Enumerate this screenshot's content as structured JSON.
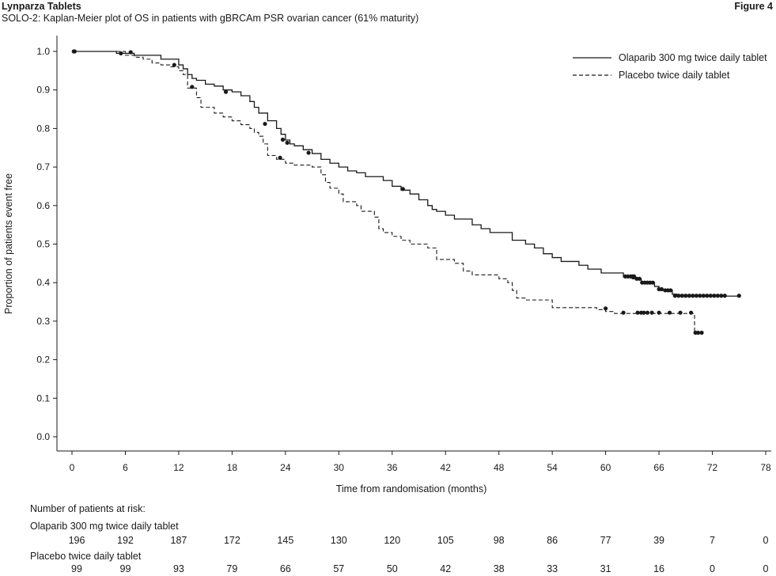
{
  "header": {
    "left_title": "Lynparza Tablets",
    "subtitle": "SOLO-2: Kaplan-Meier plot of OS in patients with gBRCAm PSR ovarian cancer (61% maturity)",
    "figure_label": "Figure 4"
  },
  "chart_data": {
    "type": "line",
    "xlabel": "Time from randomisation (months)",
    "ylabel": "Proportion of patients event free",
    "xlim": [
      0,
      78
    ],
    "ylim": [
      0,
      1.0
    ],
    "x_ticks": [
      0,
      6,
      12,
      18,
      24,
      30,
      36,
      42,
      48,
      54,
      60,
      66,
      72,
      78
    ],
    "y_ticks": [
      "0.0",
      "0.1",
      "0.2",
      "0.3",
      "0.4",
      "0.5",
      "0.6",
      "0.7",
      "0.8",
      "0.9",
      "1.0"
    ],
    "legend_position": "top-right",
    "grid": false,
    "series": [
      {
        "name": "Olaparib 300 mg twice daily tablet",
        "style": "solid",
        "color": "#1a1a1a",
        "steps": [
          [
            0,
            1.0
          ],
          [
            5,
            0.995
          ],
          [
            7,
            0.99
          ],
          [
            10,
            0.98
          ],
          [
            11.5,
            0.98
          ],
          [
            12,
            0.965
          ],
          [
            12.5,
            0.955
          ],
          [
            13,
            0.94
          ],
          [
            13.5,
            0.93
          ],
          [
            14,
            0.925
          ],
          [
            15,
            0.915
          ],
          [
            16,
            0.91
          ],
          [
            17,
            0.9
          ],
          [
            18,
            0.895
          ],
          [
            19,
            0.885
          ],
          [
            20,
            0.87
          ],
          [
            20.5,
            0.855
          ],
          [
            21,
            0.84
          ],
          [
            22,
            0.82
          ],
          [
            23,
            0.8
          ],
          [
            23.5,
            0.785
          ],
          [
            24,
            0.77
          ],
          [
            24.5,
            0.76
          ],
          [
            25,
            0.755
          ],
          [
            26,
            0.745
          ],
          [
            27,
            0.735
          ],
          [
            28,
            0.72
          ],
          [
            29,
            0.71
          ],
          [
            30,
            0.7
          ],
          [
            31,
            0.69
          ],
          [
            32,
            0.685
          ],
          [
            33,
            0.675
          ],
          [
            35,
            0.665
          ],
          [
            36,
            0.65
          ],
          [
            37,
            0.64
          ],
          [
            38,
            0.63
          ],
          [
            39,
            0.615
          ],
          [
            40,
            0.6
          ],
          [
            40.5,
            0.59
          ],
          [
            41,
            0.585
          ],
          [
            42,
            0.575
          ],
          [
            43,
            0.565
          ],
          [
            45,
            0.55
          ],
          [
            46,
            0.54
          ],
          [
            47,
            0.53
          ],
          [
            49,
            0.53
          ],
          [
            49.5,
            0.51
          ],
          [
            51,
            0.5
          ],
          [
            52,
            0.49
          ],
          [
            53,
            0.475
          ],
          [
            54,
            0.465
          ],
          [
            55,
            0.455
          ],
          [
            57,
            0.445
          ],
          [
            58,
            0.435
          ],
          [
            59.5,
            0.425
          ],
          [
            62,
            0.415
          ],
          [
            63,
            0.41
          ],
          [
            64,
            0.4
          ],
          [
            65.5,
            0.39
          ],
          [
            66,
            0.38
          ],
          [
            67.5,
            0.37
          ],
          [
            68,
            0.365
          ],
          [
            75,
            0.365
          ]
        ],
        "censor": [
          [
            0.2,
            1.0
          ],
          [
            5.5,
            0.995
          ],
          [
            6.6,
            0.998
          ],
          [
            17.3,
            0.895
          ],
          [
            21.7,
            0.812
          ],
          [
            23.7,
            0.771
          ],
          [
            24.2,
            0.763
          ],
          [
            26.6,
            0.737
          ],
          [
            37.2,
            0.643
          ],
          [
            62.2,
            0.416
          ],
          [
            62.5,
            0.416
          ],
          [
            62.8,
            0.416
          ],
          [
            63.0,
            0.416
          ],
          [
            63.2,
            0.416
          ],
          [
            63.5,
            0.41
          ],
          [
            63.8,
            0.41
          ],
          [
            64.1,
            0.4
          ],
          [
            64.4,
            0.4
          ],
          [
            64.7,
            0.4
          ],
          [
            65.0,
            0.4
          ],
          [
            65.3,
            0.4
          ],
          [
            66.0,
            0.383
          ],
          [
            66.3,
            0.383
          ],
          [
            66.7,
            0.38
          ],
          [
            67.0,
            0.38
          ],
          [
            67.3,
            0.38
          ],
          [
            67.8,
            0.366
          ],
          [
            68.2,
            0.366
          ],
          [
            68.6,
            0.366
          ],
          [
            69.0,
            0.366
          ],
          [
            69.4,
            0.366
          ],
          [
            69.8,
            0.366
          ],
          [
            70.2,
            0.366
          ],
          [
            70.6,
            0.366
          ],
          [
            71.0,
            0.366
          ],
          [
            71.4,
            0.366
          ],
          [
            71.8,
            0.366
          ],
          [
            72.2,
            0.366
          ],
          [
            72.6,
            0.366
          ],
          [
            73.0,
            0.366
          ],
          [
            73.4,
            0.366
          ],
          [
            75.0,
            0.366
          ]
        ]
      },
      {
        "name": "Placebo twice daily tablet",
        "style": "dashed",
        "color": "#1a1a1a",
        "steps": [
          [
            0,
            1.0
          ],
          [
            6,
            0.99
          ],
          [
            7,
            0.985
          ],
          [
            8,
            0.98
          ],
          [
            9,
            0.97
          ],
          [
            10,
            0.965
          ],
          [
            11,
            0.96
          ],
          [
            12,
            0.95
          ],
          [
            12.5,
            0.94
          ],
          [
            13,
            0.905
          ],
          [
            14,
            0.88
          ],
          [
            14.5,
            0.855
          ],
          [
            16,
            0.84
          ],
          [
            17,
            0.83
          ],
          [
            18,
            0.82
          ],
          [
            19,
            0.81
          ],
          [
            20,
            0.8
          ],
          [
            20.5,
            0.79
          ],
          [
            21,
            0.78
          ],
          [
            21.5,
            0.76
          ],
          [
            22,
            0.73
          ],
          [
            23,
            0.72
          ],
          [
            24,
            0.71
          ],
          [
            25,
            0.705
          ],
          [
            27,
            0.7
          ],
          [
            28,
            0.68
          ],
          [
            28.5,
            0.66
          ],
          [
            29,
            0.645
          ],
          [
            30,
            0.63
          ],
          [
            30.5,
            0.61
          ],
          [
            32,
            0.6
          ],
          [
            32.5,
            0.585
          ],
          [
            34,
            0.57
          ],
          [
            34.5,
            0.54
          ],
          [
            35,
            0.53
          ],
          [
            36,
            0.52
          ],
          [
            37,
            0.51
          ],
          [
            38,
            0.5
          ],
          [
            40,
            0.49
          ],
          [
            41,
            0.46
          ],
          [
            43,
            0.45
          ],
          [
            44,
            0.43
          ],
          [
            45,
            0.42
          ],
          [
            47,
            0.42
          ],
          [
            48,
            0.41
          ],
          [
            49,
            0.4
          ],
          [
            49.5,
            0.38
          ],
          [
            50,
            0.36
          ],
          [
            51,
            0.355
          ],
          [
            54,
            0.335
          ],
          [
            59,
            0.33
          ],
          [
            60,
            0.325
          ],
          [
            61,
            0.32
          ],
          [
            63,
            0.32
          ],
          [
            69.5,
            0.32
          ],
          [
            70,
            0.27
          ],
          [
            71,
            0.27
          ]
        ],
        "censor": [
          [
            0.3,
            1.0
          ],
          [
            11.5,
            0.965
          ],
          [
            13.5,
            0.908
          ],
          [
            23.4,
            0.724
          ],
          [
            60.0,
            0.333
          ],
          [
            62.0,
            0.322
          ],
          [
            63.6,
            0.322
          ],
          [
            64.0,
            0.322
          ],
          [
            64.3,
            0.322
          ],
          [
            64.7,
            0.322
          ],
          [
            65.2,
            0.322
          ],
          [
            66.0,
            0.322
          ],
          [
            67.2,
            0.322
          ],
          [
            68.4,
            0.322
          ],
          [
            69.6,
            0.322
          ],
          [
            70.1,
            0.27
          ],
          [
            70.4,
            0.27
          ],
          [
            70.8,
            0.27
          ]
        ]
      }
    ]
  },
  "risk_table": {
    "heading": "Number of patients at risk:",
    "rows": [
      {
        "label": "Olaparib 300 mg twice daily tablet",
        "values": [
          "196",
          "192",
          "187",
          "172",
          "145",
          "130",
          "120",
          "105",
          "98",
          "86",
          "77",
          "39",
          "7",
          "0"
        ]
      },
      {
        "label": "Placebo twice daily tablet",
        "values": [
          "99",
          "99",
          "93",
          "79",
          "66",
          "57",
          "50",
          "42",
          "38",
          "33",
          "31",
          "16",
          "0",
          "0"
        ]
      }
    ]
  }
}
